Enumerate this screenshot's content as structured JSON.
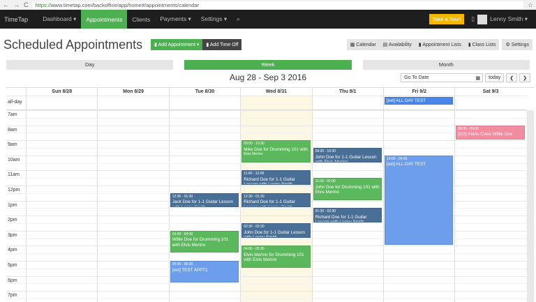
{
  "browser": {
    "url_secure": "https://",
    "url_host": "www.timetap.com",
    "url_path": "/backoffice/app/home#/appointments/calendar"
  },
  "nav": {
    "logo": "TimeTap",
    "items": [
      "Dashboard ▾",
      "Appointments",
      "Clients",
      "Payments ▾",
      "Settings ▾"
    ],
    "active": 1,
    "search_icon": "search-icon",
    "tour": "Take a Tour!",
    "user": "Lenny Smith ▾"
  },
  "header": {
    "title": "Scheduled Appointments",
    "add_appointment": "▮ Add Appointment ▾",
    "add_time_off": "▮ Add Time Off",
    "right": [
      "▦ Calendar",
      "▤ Availability",
      "▮ Appointment Lists",
      "▮ Class Lists"
    ],
    "settings": "⚙ Settings"
  },
  "views": [
    "Day",
    "Week",
    "Month"
  ],
  "active_view": 1,
  "range": "Aug 28 - Sep 3 2016",
  "goto": {
    "placeholder": "Go To Date",
    "today": "today",
    "prev": "❮",
    "next": "❯"
  },
  "days": [
    "Sun 8/28",
    "Mon 8/29",
    "Tue 8/30",
    "Wed 8/31",
    "Thu 9/1",
    "Fri 9/2",
    "Sat 9/3"
  ],
  "today_index": 3,
  "allday_label": "all-day",
  "hours": [
    "7am",
    "8am",
    "9am",
    "10am",
    "11am",
    "12pm",
    "1pm",
    "2pm",
    "3pm",
    "4pm",
    "5pm",
    "6pm",
    "7pm"
  ],
  "allday_events": [
    {
      "day": 5,
      "title": "[ext] ALL DAY TEST",
      "color": "#4a86e8"
    }
  ],
  "events": [
    {
      "day": 3,
      "start": 9,
      "end": 10.5,
      "time": "09:00 - 10:30",
      "title": "Mike Doe for Drumming 101 with",
      "sub": "Elvis Merino",
      "color": "#5cb85c"
    },
    {
      "day": 4,
      "start": 9.5,
      "end": 10.5,
      "time": "09:30 - 10:30",
      "title": "John Doe for 1-1 Guitar Lesson with Elvis Merino",
      "color": "#4a6f96"
    },
    {
      "day": 5,
      "start": 10,
      "end": 16,
      "time": "10:00 - 04:00",
      "title": "[ext] ALL DAY TEST",
      "color": "#6d9eeb"
    },
    {
      "day": 3,
      "start": 11,
      "end": 12,
      "time": "11:00 - 12:00",
      "title": "Richard Doe for 1-1 Guitar Lesson with Lenny Smith",
      "color": "#4a6f96"
    },
    {
      "day": 4,
      "start": 11.5,
      "end": 13,
      "time": "11:30 - 01:00",
      "title": "John Doe for Drumming 101 with Elvis Merino",
      "color": "#5cb85c"
    },
    {
      "day": 2,
      "start": 12.5,
      "end": 13.5,
      "time": "12:30 - 01:30",
      "title": "Jack Doe for 1-1 Guitar Lesson with Lenny Smith",
      "color": "#4a6f96"
    },
    {
      "day": 3,
      "start": 12.5,
      "end": 13.5,
      "time": "12:30 - 01:30",
      "title": "Richard Doe for 1-1 Guitar Lesson with Lenny Smith",
      "color": "#4a6f96"
    },
    {
      "day": 4,
      "start": 13.5,
      "end": 14.5,
      "time": "01:30 - 02:30",
      "title": "Richard Doe for 1-1 Guitar Lesson with Lenny Smith",
      "color": "#4a6f96"
    },
    {
      "day": 3,
      "start": 14.5,
      "end": 15.5,
      "time": "02:30 - 03:30",
      "title": "John Doe for 1-1 Guitar Lesson with Lenny Smith",
      "color": "#4a6f96"
    },
    {
      "day": 2,
      "start": 15,
      "end": 16.5,
      "time": "03:00 - 04:30",
      "title": "Willie Doe for Drumming 101 with Elvis Merino",
      "color": "#5cb85c"
    },
    {
      "day": 3,
      "start": 16,
      "end": 17.5,
      "time": "04:00 - 05:30",
      "title": "Elvis Merino for Drumming 101 with Elvis Merino",
      "color": "#5cb85c"
    },
    {
      "day": 2,
      "start": 17,
      "end": 18.5,
      "time": "05:00 - 06:30",
      "title": "[ext] TEST APPT1",
      "color": "#6d9eeb"
    },
    {
      "day": 6,
      "start": 8,
      "end": 9,
      "time": "08:00 - 09:00",
      "title": "[2/2] Piano Class Willie Doe",
      "color": "#f28ca0"
    }
  ]
}
